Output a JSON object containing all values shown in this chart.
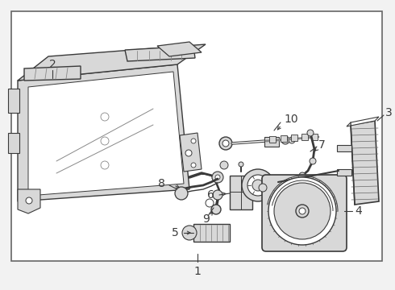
{
  "bg": "#f2f2f2",
  "white": "#ffffff",
  "lc": "#3a3a3a",
  "gray": "#b0b0b0",
  "lgray": "#d8d8d8",
  "border_lc": "#666666",
  "figsize": [
    4.9,
    3.6
  ],
  "dpi": 100
}
